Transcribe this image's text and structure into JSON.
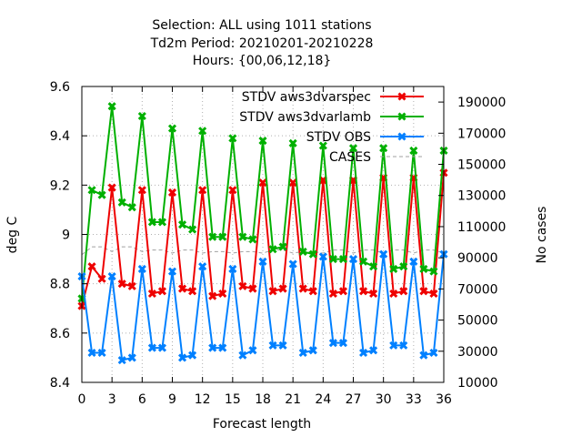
{
  "chart_data": {
    "type": "line",
    "title_lines": [
      "Selection: ALL using  1011 stations",
      "Td2m   Period: 20210201-20210228",
      "Hours: {00,06,12,18}"
    ],
    "xlabel": "Forecast length",
    "ylabel": "deg C",
    "y2label": "No cases",
    "xlim": [
      0,
      36
    ],
    "ylim": [
      8.4,
      9.6
    ],
    "y2lim": [
      10000,
      200000
    ],
    "x_ticks": [
      "0",
      "3",
      "6",
      "9",
      "12",
      "15",
      "18",
      "21",
      "24",
      "27",
      "30",
      "33",
      "36"
    ],
    "y_ticks": [
      "8.4",
      "8.6",
      "8.8",
      "9",
      "9.2",
      "9.4",
      "9.6"
    ],
    "y2_ticks": [
      "10000",
      "30000",
      "50000",
      "70000",
      "90000",
      "110000",
      "130000",
      "150000",
      "170000",
      "190000"
    ],
    "legend_position": "top-right",
    "x": [
      0,
      1,
      2,
      3,
      4,
      5,
      6,
      7,
      8,
      9,
      10,
      11,
      12,
      13,
      14,
      15,
      16,
      17,
      18,
      19,
      20,
      21,
      22,
      23,
      24,
      25,
      26,
      27,
      28,
      29,
      30,
      31,
      32,
      33,
      34,
      35,
      36
    ],
    "series": [
      {
        "name": "STDV aws3dvarspec",
        "color": "#ee0000",
        "marker": "x",
        "values": [
          8.71,
          8.87,
          8.82,
          9.19,
          8.8,
          8.79,
          9.18,
          8.76,
          8.77,
          9.17,
          8.78,
          8.77,
          9.18,
          8.75,
          8.76,
          9.18,
          8.79,
          8.78,
          9.21,
          8.77,
          8.78,
          9.21,
          8.78,
          8.77,
          9.22,
          8.76,
          8.77,
          9.22,
          8.77,
          8.76,
          9.23,
          8.76,
          8.77,
          9.23,
          8.77,
          8.76,
          9.25
        ]
      },
      {
        "name": "STDV aws3dvarlamb",
        "color": "#00b000",
        "marker": "x",
        "values": [
          8.74,
          9.18,
          9.16,
          9.52,
          9.13,
          9.11,
          9.48,
          9.05,
          9.05,
          9.43,
          9.04,
          9.02,
          9.42,
          8.99,
          8.99,
          9.39,
          8.99,
          8.98,
          9.38,
          8.94,
          8.95,
          9.37,
          8.93,
          8.92,
          9.36,
          8.9,
          8.9,
          9.35,
          8.89,
          8.87,
          9.35,
          8.86,
          8.87,
          9.34,
          8.86,
          8.85,
          9.34
        ]
      },
      {
        "name": "STDV OBS",
        "color": "#0080ff",
        "marker": "x",
        "values": [
          8.83,
          8.52,
          8.52,
          8.83,
          8.49,
          8.5,
          8.86,
          8.54,
          8.54,
          8.85,
          8.5,
          8.51,
          8.87,
          8.54,
          8.54,
          8.86,
          8.51,
          8.53,
          8.89,
          8.55,
          8.55,
          8.88,
          8.52,
          8.53,
          8.91,
          8.56,
          8.56,
          8.9,
          8.52,
          8.53,
          8.92,
          8.55,
          8.55,
          8.89,
          8.51,
          8.52,
          8.92
        ]
      },
      {
        "name": "CASES",
        "color": "#a0a0a0",
        "marker": "none",
        "axis": "y2",
        "values": [
          92000,
          97000,
          97000,
          94000,
          97000,
          97000,
          94000,
          95000,
          95000,
          93000,
          95000,
          95000,
          93000,
          94000,
          94000,
          93000,
          94000,
          94000,
          93000,
          95000,
          95000,
          93000,
          94000,
          94000,
          93000,
          95000,
          95000,
          93000,
          95000,
          95000,
          93000,
          95000,
          95000,
          93000,
          95000,
          95000,
          93000
        ]
      }
    ]
  }
}
